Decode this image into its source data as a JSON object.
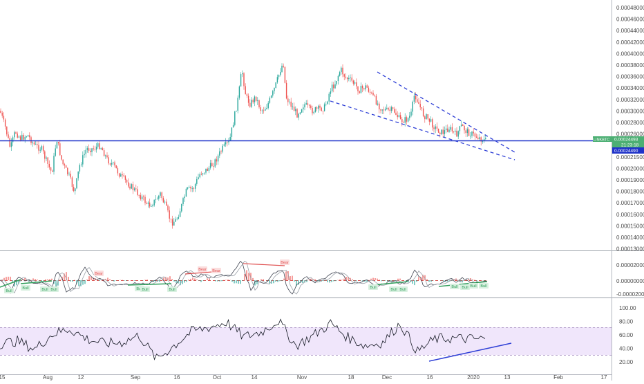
{
  "symbol_label": "LINKBTC",
  "price_scale": {
    "labels": [
      "0.00048000",
      "0.00046000",
      "0.00044000",
      "0.00042000",
      "0.00040000",
      "0.00038000",
      "0.00036000",
      "0.00034000",
      "0.00032000",
      "0.00030000",
      "0.00028000",
      "0.00026000",
      "0.00024000",
      "0.00021500",
      "0.00020000",
      "0.00019000",
      "0.00018000",
      "0.00017000",
      "0.00016000",
      "0.00015000",
      "0.00014000",
      "0.00013000"
    ]
  },
  "last_price_badge": {
    "label": "LINKBTC",
    "value": "0.00024493",
    "countdown": "21:23:18",
    "color": "#4caf73"
  },
  "line_level_badge": {
    "value": "0.00024490",
    "color": "#1f33c9"
  },
  "oscillator_scale": {
    "labels": [
      "0.00002000",
      "0.00000000",
      "-0.00002000"
    ]
  },
  "rsi_scale": {
    "labels": [
      "100.00",
      "80.00",
      "60.00",
      "40.00",
      "20.00"
    ]
  },
  "time_axis": {
    "labels": [
      "15",
      "Aug",
      "12",
      "Sep",
      "16",
      "Oct",
      "14",
      "Nov",
      "18",
      "Dec",
      "16",
      "2020",
      "13",
      "Feb",
      "17"
    ]
  },
  "colors": {
    "up": "#26a69a",
    "down": "#ef5350",
    "horizontal_line": "#1f33c9",
    "wedge_lines": "#2e3fd6",
    "rsi_line": "#131722",
    "rsi_band": "#f0e6fb",
    "bull": "#2f9e5a",
    "bear": "#e05353"
  },
  "chart_data": [
    {
      "type": "candlestick",
      "title": "",
      "series": [
        {
          "name": "",
          "x": [
            "2019-07-12",
            "2019-07-19",
            "2019-07-26",
            "2019-08-02",
            "2019-08-09",
            "2019-08-16",
            "2019-08-23",
            "2019-08-30",
            "2019-09-06",
            "2019-09-13",
            "2019-09-16",
            "2019-09-23",
            "2019-09-30",
            "2019-10-03",
            "2019-10-07",
            "2019-10-10",
            "2019-10-14",
            "2019-10-19",
            "2019-10-24",
            "2019-10-26",
            "2019-11-02",
            "2019-11-08",
            "2019-11-13",
            "2019-11-18",
            "2019-11-24",
            "2019-12-01",
            "2019-12-08",
            "2019-12-14",
            "2019-12-18",
            "2019-12-24",
            "2020-01-01",
            "2020-01-06"
          ],
          "close": [
            0.000285,
            0.000248,
            0.000235,
            0.00021,
            0.00025,
            0.00024,
            0.0002,
            0.000178,
            0.000165,
            0.000182,
            0.00015,
            0.000197,
            0.000222,
            0.000248,
            0.00031,
            0.000335,
            0.0003,
            0.000325,
            0.000368,
            0.00028,
            0.000285,
            0.00029,
            0.000335,
            0.00032,
            0.000305,
            0.00027,
            0.00032,
            0.00026,
            0.000255,
            0.000262,
            0.00025,
            0.000246
          ]
        }
      ],
      "horizontal_lines": [
        {
          "y": 0.0002449
        }
      ],
      "trend_lines": [
        {
          "style": "dashed",
          "from": [
            "2019-11-13",
            0.000305
          ],
          "to": [
            "2020-01-23",
            0.000215
          ]
        },
        {
          "style": "dashed",
          "from": [
            "2019-11-27",
            0.00035
          ],
          "to": [
            "2020-01-23",
            0.00023
          ]
        }
      ],
      "ylim": [
        0.00013,
        0.00049
      ]
    },
    {
      "type": "line",
      "title": "",
      "ylim": [
        -2e-05,
        3e-05
      ],
      "tags": [
        {
          "text": "Bull",
          "kind": "bull",
          "x": "2019-07-14"
        },
        {
          "text": "Bull",
          "kind": "bull",
          "x": "2019-07-24"
        },
        {
          "text": "Bull",
          "kind": "bull",
          "x": "2019-08-04"
        },
        {
          "text": "Bull",
          "kind": "bull",
          "x": "2019-08-08"
        },
        {
          "text": "Bear",
          "kind": "bear",
          "x": "2019-08-26"
        },
        {
          "text": "Bull",
          "kind": "bull",
          "x": "2019-09-09"
        },
        {
          "text": "Bull",
          "kind": "bull",
          "x": "2019-09-11"
        },
        {
          "text": "Bull",
          "kind": "bull",
          "x": "2019-09-22"
        },
        {
          "text": "Bear",
          "kind": "bear",
          "x": "2019-10-01"
        },
        {
          "text": "Bear",
          "kind": "bear",
          "x": "2019-10-06"
        },
        {
          "text": "Bear",
          "kind": "bear",
          "x": "2019-11-01"
        },
        {
          "text": "Bull",
          "kind": "bull",
          "x": "2019-12-04"
        },
        {
          "text": "Bull",
          "kind": "bull",
          "x": "2019-12-12"
        },
        {
          "text": "Bull",
          "kind": "bull",
          "x": "2019-12-17"
        },
        {
          "text": "Bull",
          "kind": "bull",
          "x": "2020-01-01"
        },
        {
          "text": "Bull",
          "kind": "bull",
          "x": "2020-01-03"
        },
        {
          "text": "Bull",
          "kind": "bull",
          "x": "2020-01-08"
        },
        {
          "text": "Bull",
          "kind": "bull",
          "x": "2020-01-11"
        }
      ]
    },
    {
      "type": "line",
      "title": "",
      "ylim": [
        10,
        110
      ],
      "band": [
        30,
        70
      ],
      "series": [
        {
          "name": "",
          "x": [
            "2019-07-12",
            "2019-07-20",
            "2019-07-28",
            "2019-08-05",
            "2019-08-12",
            "2019-08-20",
            "2019-08-28",
            "2019-09-05",
            "2019-09-12",
            "2019-09-16",
            "2019-09-22",
            "2019-09-29",
            "2019-10-06",
            "2019-10-12",
            "2019-10-18",
            "2019-10-24",
            "2019-10-29",
            "2019-11-05",
            "2019-11-12",
            "2019-11-18",
            "2019-11-25",
            "2019-12-02",
            "2019-12-09",
            "2019-12-13",
            "2019-12-17",
            "2019-12-23",
            "2019-12-29",
            "2020-01-04",
            "2020-01-10"
          ],
          "values": [
            48,
            52,
            40,
            62,
            70,
            55,
            48,
            50,
            60,
            25,
            45,
            66,
            72,
            80,
            58,
            65,
            82,
            45,
            60,
            78,
            57,
            45,
            50,
            78,
            36,
            55,
            56,
            55,
            55
          ]
        }
      ],
      "trend_lines": [
        {
          "from": [
            "2019-12-15",
            24
          ],
          "to": [
            "2020-01-19",
            48
          ]
        }
      ]
    }
  ]
}
